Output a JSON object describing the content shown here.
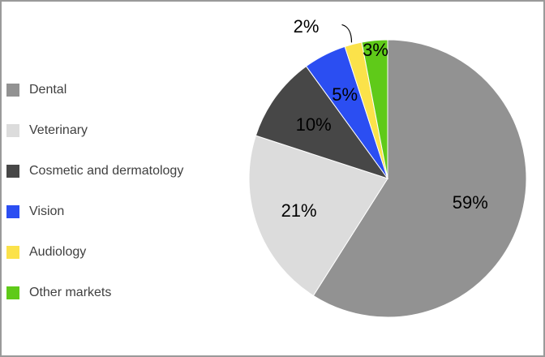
{
  "chart_data": {
    "type": "pie",
    "title": "",
    "legend_position": "left",
    "slices": [
      {
        "label": "Dental",
        "value": 59,
        "value_label": "59%",
        "color": "#929292"
      },
      {
        "label": "Veterinary",
        "value": 21,
        "value_label": "21%",
        "color": "#dcdcdc"
      },
      {
        "label": "Cosmetic and dermatology",
        "value": 10,
        "value_label": "10%",
        "color": "#474747"
      },
      {
        "label": "Vision",
        "value": 5,
        "value_label": "5%",
        "color": "#2b4ef2"
      },
      {
        "label": "Audiology",
        "value": 2,
        "value_label": "2%",
        "color": "#fbe24a"
      },
      {
        "label": "Other markets",
        "value": 3,
        "value_label": "3%",
        "color": "#5fca19"
      }
    ]
  }
}
